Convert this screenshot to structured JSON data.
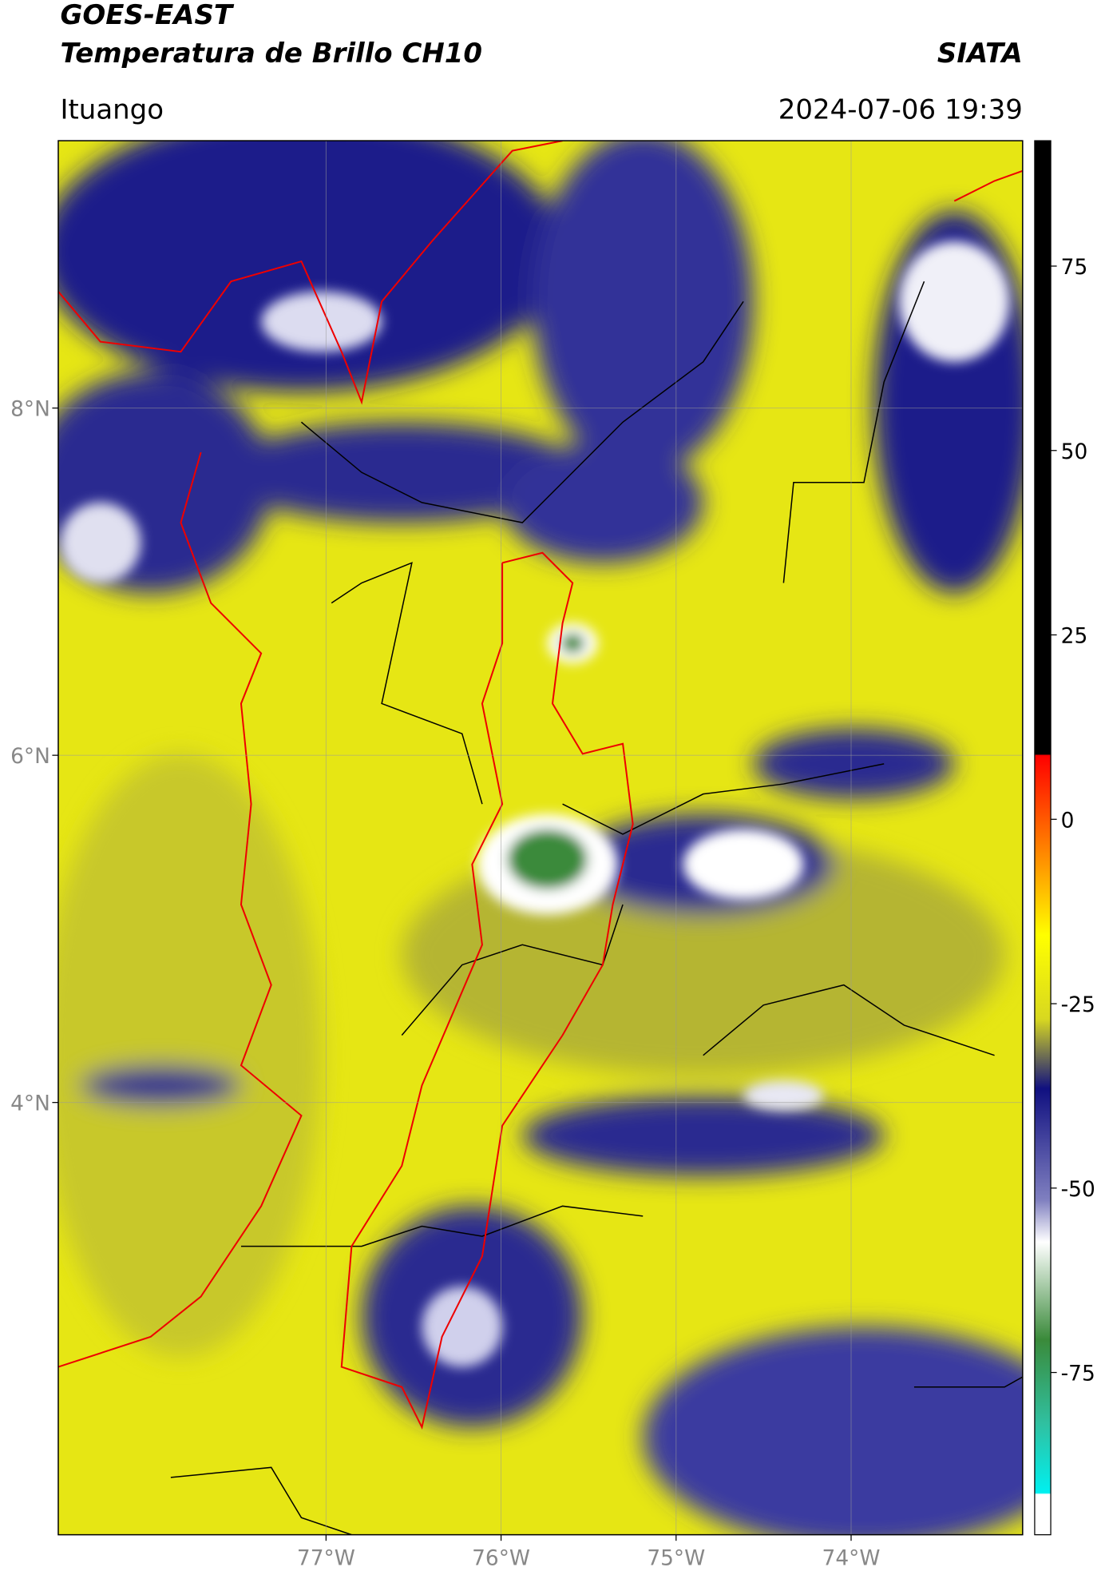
{
  "header": {
    "title": "GOES-EAST",
    "subtitle": "Temperatura de Brillo CH10",
    "brand": "SIATA",
    "location": "Ituango",
    "datetime": "2024-07-06 19:39"
  },
  "map": {
    "xlim": [
      -78.53,
      -73.02
    ],
    "ylim": [
      1.51,
      9.54
    ],
    "xticks": [
      {
        "value": -77,
        "label": "77°W"
      },
      {
        "value": -76,
        "label": "76°W"
      },
      {
        "value": -75,
        "label": "75°W"
      },
      {
        "value": -74,
        "label": "74°W"
      }
    ],
    "yticks": [
      {
        "value": 8,
        "label": "8°N"
      },
      {
        "value": 6,
        "label": "6°N"
      },
      {
        "value": 4,
        "label": "4°N"
      }
    ]
  },
  "colorbar": {
    "lim": [
      -97,
      92
    ],
    "ticks": [
      75,
      50,
      25,
      0,
      -25,
      -50,
      -75
    ]
  }
}
